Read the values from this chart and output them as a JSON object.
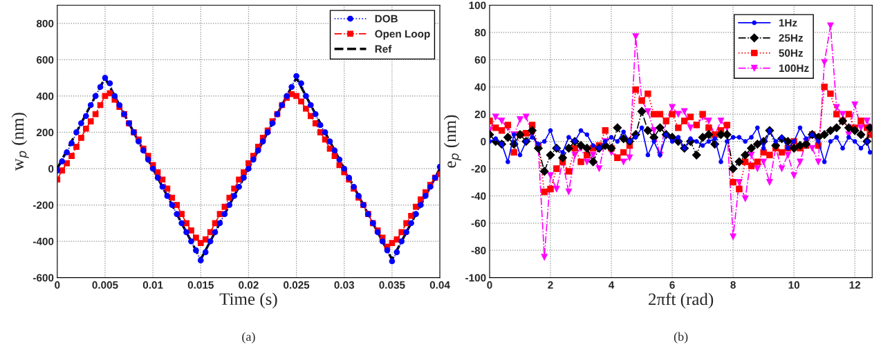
{
  "chart_data": [
    {
      "type": "line",
      "xlabel": "Time (s)",
      "ylabel": "w$_{p}$ (nm)",
      "annotations": [
        "(a)"
      ],
      "x": [
        0,
        0.0005,
        0.001,
        0.0015,
        0.002,
        0.0025,
        0.003,
        0.0035,
        0.004,
        0.0045,
        0.005,
        0.0055,
        0.006,
        0.0065,
        0.007,
        0.0075,
        0.008,
        0.0085,
        0.009,
        0.0095,
        0.01,
        0.0105,
        0.011,
        0.0115,
        0.012,
        0.0125,
        0.013,
        0.0135,
        0.014,
        0.0145,
        0.015,
        0.0155,
        0.016,
        0.0165,
        0.017,
        0.0175,
        0.018,
        0.0185,
        0.019,
        0.0195,
        0.02,
        0.0205,
        0.021,
        0.0215,
        0.022,
        0.0225,
        0.023,
        0.0235,
        0.024,
        0.0245,
        0.025,
        0.0255,
        0.026,
        0.0265,
        0.027,
        0.0275,
        0.028,
        0.0285,
        0.029,
        0.0295,
        0.03,
        0.0305,
        0.031,
        0.0315,
        0.032,
        0.0325,
        0.033,
        0.0335,
        0.034,
        0.0345,
        0.035,
        0.0355,
        0.036,
        0.0365,
        0.037,
        0.0375,
        0.038,
        0.0385,
        0.039,
        0.0395,
        0.04
      ],
      "series": [
        {
          "name": "DOB",
          "color": "#0000ff",
          "marker": "circle",
          "line_style": "dotted",
          "values": [
            -10,
            40,
            90,
            140,
            200,
            250,
            290,
            350,
            400,
            450,
            500,
            470,
            400,
            350,
            300,
            250,
            200,
            150,
            100,
            50,
            0,
            -50,
            -100,
            -150,
            -200,
            -250,
            -300,
            -350,
            -400,
            -450,
            -505,
            -460,
            -400,
            -350,
            -300,
            -250,
            -200,
            -150,
            -100,
            -50,
            0,
            50,
            100,
            150,
            200,
            250,
            300,
            350,
            400,
            450,
            510,
            470,
            400,
            350,
            300,
            240,
            200,
            150,
            100,
            50,
            0,
            -50,
            -100,
            -150,
            -200,
            -250,
            -300,
            -350,
            -400,
            -450,
            -510,
            -460,
            -400,
            -350,
            -300,
            -250,
            -200,
            -150,
            -100,
            -50,
            10
          ]
        },
        {
          "name": "Open Loop",
          "color": "#ff0000",
          "marker": "square",
          "line_style": "dashdot",
          "values": [
            -60,
            -10,
            30,
            70,
            120,
            170,
            220,
            260,
            300,
            350,
            400,
            415,
            380,
            340,
            300,
            250,
            200,
            160,
            110,
            70,
            20,
            -20,
            -60,
            -110,
            -160,
            -200,
            -250,
            -300,
            -340,
            -380,
            -410,
            -390,
            -350,
            -300,
            -250,
            -210,
            -160,
            -110,
            -60,
            -20,
            30,
            70,
            120,
            170,
            210,
            260,
            300,
            350,
            390,
            410,
            400,
            370,
            330,
            290,
            250,
            200,
            160,
            110,
            70,
            20,
            -20,
            -60,
            -110,
            -160,
            -200,
            -250,
            -300,
            -340,
            -380,
            -430,
            -410,
            -390,
            -350,
            -300,
            -260,
            -210,
            -170,
            -130,
            -90,
            -50,
            -30
          ]
        },
        {
          "name": "Ref",
          "color": "#000000",
          "marker": "none",
          "line_style": "dashed",
          "x": [
            0,
            0.005,
            0.015,
            0.025,
            0.035,
            0.04
          ],
          "values": [
            0,
            500,
            -500,
            500,
            -500,
            0
          ]
        }
      ],
      "xlim": [
        0,
        0.04
      ],
      "xticks": [
        0,
        0.005,
        0.01,
        0.015,
        0.02,
        0.025,
        0.03,
        0.035,
        0.04
      ],
      "ylim": [
        -600,
        900
      ],
      "yticks": [
        -600,
        -400,
        -200,
        0,
        200,
        400,
        600,
        800
      ],
      "grid": true,
      "legend": "top right"
    },
    {
      "type": "line",
      "xlabel": "2πft (rad)",
      "ylabel": "e$_{p}$ (nm)",
      "annotations": [
        "(b)"
      ],
      "x": [
        0,
        0.2,
        0.4,
        0.6,
        0.8,
        1.0,
        1.2,
        1.4,
        1.6,
        1.8,
        2.0,
        2.2,
        2.4,
        2.6,
        2.8,
        3.0,
        3.2,
        3.4,
        3.6,
        3.8,
        4.0,
        4.2,
        4.4,
        4.6,
        4.8,
        5.0,
        5.2,
        5.4,
        5.6,
        5.8,
        6.0,
        6.2,
        6.4,
        6.6,
        6.8,
        7.0,
        7.2,
        7.4,
        7.6,
        7.8,
        8.0,
        8.2,
        8.4,
        8.6,
        8.8,
        9.0,
        9.2,
        9.4,
        9.6,
        9.8,
        10.0,
        10.2,
        10.4,
        10.6,
        10.8,
        11.0,
        11.2,
        11.4,
        11.6,
        11.8,
        12.0,
        12.2,
        12.4,
        12.5
      ],
      "series": [
        {
          "name": "1Hz",
          "color": "#0000ff",
          "marker": "circle",
          "line_style": "solid",
          "values": [
            0,
            2,
            -2,
            -15,
            5,
            -10,
            0,
            3,
            -2,
            0,
            8,
            -5,
            -8,
            3,
            0,
            8,
            5,
            -3,
            -5,
            0,
            3,
            0,
            7,
            0,
            3,
            10,
            -10,
            0,
            -10,
            5,
            0,
            3,
            -5,
            2,
            0,
            -3,
            0,
            2,
            -15,
            0,
            3,
            3,
            0,
            3,
            10,
            -5,
            8,
            0,
            3,
            -5,
            0,
            10,
            2,
            5,
            0,
            -15,
            0,
            3,
            -5,
            3,
            0,
            -5,
            0,
            -8
          ]
        },
        {
          "name": "25Hz",
          "color": "#000000",
          "marker": "diamond",
          "line_style": "dashdot",
          "values": [
            5,
            0,
            -2,
            3,
            -2,
            5,
            0,
            8,
            -5,
            -22,
            -10,
            -5,
            -12,
            -5,
            0,
            -3,
            -5,
            -15,
            -5,
            -3,
            -5,
            10,
            2,
            0,
            5,
            22,
            8,
            3,
            10,
            5,
            3,
            0,
            -5,
            0,
            -10,
            3,
            5,
            -2,
            5,
            5,
            -20,
            -15,
            -10,
            -5,
            -2,
            0,
            8,
            -3,
            2,
            0,
            -5,
            -3,
            -2,
            5,
            3,
            5,
            8,
            10,
            15,
            10,
            8,
            5,
            0,
            10
          ]
        },
        {
          "name": "50Hz",
          "color": "#ff0000",
          "marker": "square",
          "line_style": "dotted",
          "values": [
            15,
            10,
            8,
            12,
            -8,
            5,
            6,
            12,
            -3,
            -37,
            -35,
            -20,
            -15,
            -22,
            -5,
            -15,
            -10,
            -5,
            -3,
            8,
            -5,
            -12,
            -8,
            -3,
            38,
            30,
            35,
            20,
            20,
            15,
            20,
            10,
            15,
            18,
            12,
            20,
            10,
            5,
            8,
            12,
            -30,
            -35,
            -15,
            -18,
            -15,
            -8,
            -10,
            -5,
            -8,
            -5,
            0,
            -5,
            -3,
            5,
            -3,
            40,
            35,
            20,
            15,
            20,
            10,
            15,
            10,
            5
          ]
        },
        {
          "name": "100Hz",
          "color": "#ff00ff",
          "marker": "triangle",
          "line_style": "dashdot",
          "values": [
            8,
            18,
            15,
            10,
            5,
            16,
            18,
            5,
            -5,
            -85,
            -25,
            -35,
            -15,
            -37,
            -10,
            -5,
            -15,
            -10,
            -20,
            0,
            -8,
            -12,
            -15,
            -12,
            77,
            30,
            22,
            8,
            -10,
            15,
            25,
            20,
            22,
            10,
            12,
            18,
            15,
            5,
            15,
            10,
            -70,
            -30,
            -42,
            -10,
            -20,
            -15,
            -30,
            -5,
            -20,
            -10,
            -25,
            -15,
            0,
            -5,
            -15,
            58,
            85,
            25,
            20,
            5,
            27,
            10,
            15,
            10
          ]
        }
      ],
      "xlim": [
        0,
        12.57
      ],
      "xticks": [
        0,
        2,
        4,
        6,
        8,
        10,
        12
      ],
      "ylim": [
        -100,
        100
      ],
      "yticks": [
        -100,
        -80,
        -60,
        -40,
        -20,
        0,
        20,
        40,
        60,
        80,
        100
      ],
      "grid": true,
      "legend": "top right"
    }
  ]
}
